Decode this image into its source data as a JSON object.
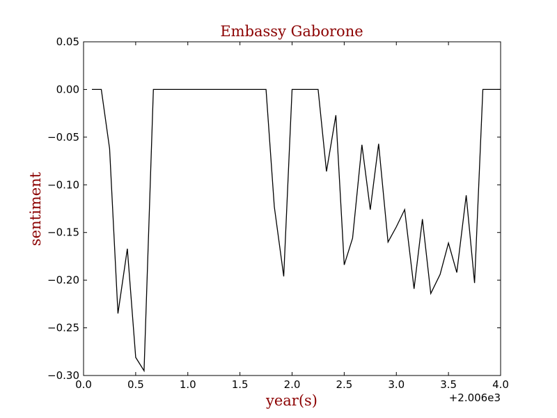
{
  "chart_data": {
    "type": "line",
    "title": "Embassy Gaborone",
    "xlabel": "year(s)",
    "ylabel": "sentiment",
    "x_offset_label": "+2.006e3",
    "xlim": [
      0.0,
      4.0
    ],
    "ylim": [
      -0.3,
      0.05
    ],
    "xticks": [
      "0.0",
      "0.5",
      "1.0",
      "1.5",
      "2.0",
      "2.5",
      "3.0",
      "3.5",
      "4.0"
    ],
    "yticks": [
      "0.05",
      "0.00",
      "−0.05",
      "−0.10",
      "−0.15",
      "−0.20",
      "−0.25",
      "−0.30"
    ],
    "grid": false,
    "line_color": "#000000",
    "series": [
      {
        "x": [
          0.08,
          0.17,
          0.25,
          0.33,
          0.42,
          0.5,
          0.58,
          0.67,
          0.75,
          0.83,
          0.92,
          1.0,
          1.08,
          1.17,
          1.25,
          1.33,
          1.42,
          1.5,
          1.58,
          1.67,
          1.75,
          1.83,
          1.92,
          2.0,
          2.08,
          2.17,
          2.25,
          2.33,
          2.42,
          2.5,
          2.58,
          2.67,
          2.75,
          2.83,
          2.92,
          3.0,
          3.08,
          3.17,
          3.25,
          3.33,
          3.42,
          3.5,
          3.58,
          3.67,
          3.75,
          3.83,
          3.92,
          4.0
        ],
        "y": [
          0.0,
          0.0,
          -0.062,
          -0.235,
          -0.167,
          -0.281,
          -0.295,
          0.0,
          0.0,
          0.0,
          0.0,
          0.0,
          0.0,
          0.0,
          0.0,
          0.0,
          0.0,
          0.0,
          0.0,
          0.0,
          0.0,
          -0.123,
          -0.196,
          0.0,
          0.0,
          0.0,
          0.0,
          -0.086,
          -0.027,
          -0.184,
          -0.156,
          -0.058,
          -0.126,
          -0.057,
          -0.16,
          -0.144,
          -0.126,
          -0.209,
          -0.136,
          -0.214,
          -0.194,
          -0.161,
          -0.192,
          -0.111,
          -0.203,
          0.0,
          0.0,
          0.0
        ]
      }
    ]
  }
}
